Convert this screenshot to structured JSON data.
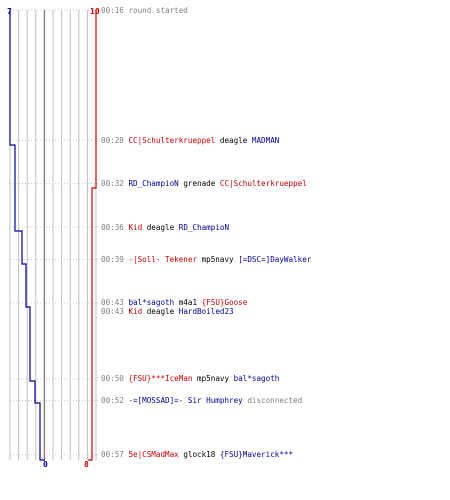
{
  "colors": {
    "team1": "#cc0000",
    "team2": "#000099",
    "weapon": "#000000",
    "time": "#808080",
    "grid": "#c0c0c0"
  },
  "scores": {
    "blue_start": "7",
    "red_start": "10",
    "blue_end": "0",
    "red_end": "8"
  },
  "events": [
    {
      "time": "00:16",
      "type": "info",
      "text": "round started"
    },
    {
      "time": "00:28",
      "type": "kill",
      "killer": "CC|Schulterkrueppel",
      "killer_team": "t1",
      "weapon": "deagle",
      "victim": "MADMAN",
      "victim_team": "t2"
    },
    {
      "time": "00:32",
      "type": "kill",
      "killer": "RD_ChampioN",
      "killer_team": "t2",
      "weapon": "grenade",
      "victim": "CC|Schulterkrueppel",
      "victim_team": "t1"
    },
    {
      "time": "00:36",
      "type": "kill",
      "killer": "Kid",
      "killer_team": "t1",
      "weapon": "deagle",
      "victim": "RD_ChampioN",
      "victim_team": "t2"
    },
    {
      "time": "00:39",
      "type": "kill",
      "killer": "-|Soll- Tekener",
      "killer_team": "t1",
      "weapon": "mp5navy",
      "victim": "[=DSC=]DayWalker",
      "victim_team": "t2"
    },
    {
      "time": "00:43",
      "type": "kill",
      "killer": "bal*sagoth",
      "killer_team": "t2",
      "weapon": "m4a1",
      "victim": "{FSU}Goose",
      "victim_team": "t1"
    },
    {
      "time": "00:43",
      "type": "kill",
      "killer": "Kid",
      "killer_team": "t1",
      "weapon": "deagle",
      "victim": "HardBoiled23",
      "victim_team": "t2"
    },
    {
      "time": "00:50",
      "type": "kill",
      "killer": "{FSU}***IceMan",
      "killer_team": "t1",
      "weapon": "mp5navy",
      "victim": "bal*sagoth",
      "victim_team": "t2"
    },
    {
      "time": "00:52",
      "type": "info2",
      "name": "-=[MOSSAD]=- Sir Humphrey",
      "name_team": "t2",
      "text": "disconnected"
    },
    {
      "time": "00:57",
      "type": "kill",
      "killer": "5e|CSMadMax",
      "killer_team": "t1",
      "weapon": "glock18",
      "victim": "{FSU}Maverick***",
      "victim_team": "t2"
    }
  ]
}
